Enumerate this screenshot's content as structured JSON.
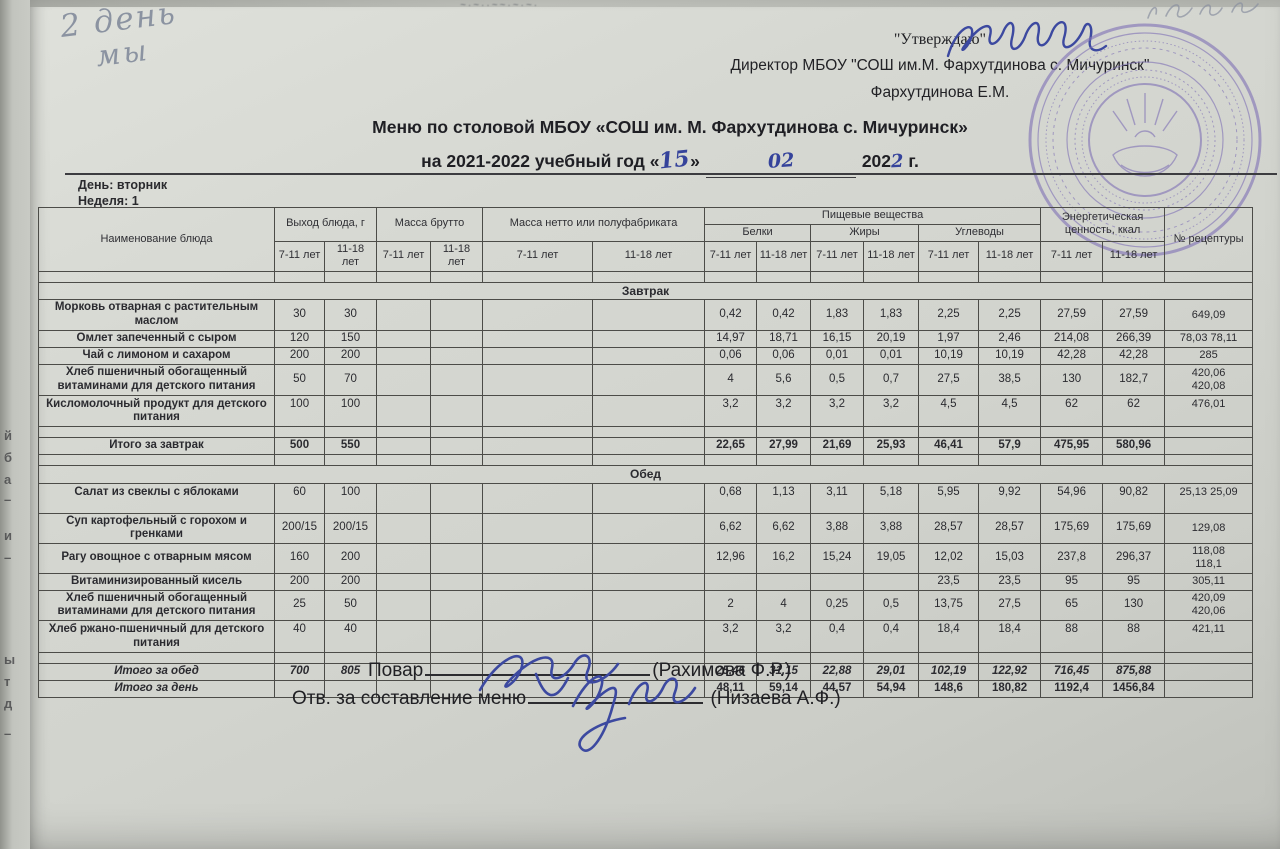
{
  "corner_note": {
    "line1": "2 день",
    "line2": "мы"
  },
  "edge_fragments": [
    "й",
    "б",
    "а",
    "–",
    "и",
    "–",
    "ы",
    "т",
    "д",
    "–"
  ],
  "approval": {
    "quote": "\"Утверждаю\"",
    "director_line": "Директор МБОУ \"СОШ им.М. Фархутдинова с. Мичуринск\"",
    "director_name": "Фархутдинова Е.М."
  },
  "title": {
    "line1": "Меню по столовой МБОУ «СОШ им. М. Фархутдинова с. Мичуринск»",
    "line2_prefix": "на 2021-2022 учебный год «",
    "day_handwritten": "15",
    "quote_close": "»",
    "month_handwritten": "02",
    "year_printed": "202",
    "year_handwritten": "2",
    "year_suffix": "г."
  },
  "meta": {
    "day_label": "День:",
    "day_value": "вторник",
    "week_label": "Неделя:",
    "week_value": "1"
  },
  "colors": {
    "ink_blue": "#3c49a0",
    "stamp_purple": "#8173b6",
    "pencil_gray": "#7d8698"
  },
  "table": {
    "headers": {
      "name": "Наименование блюда",
      "output": "Выход блюда, г",
      "gross": "Масса брутто",
      "net": "Масса нетто или полуфабриката",
      "nutrients": "Пищевые вещества",
      "protein": "Белки",
      "fat": "Жиры",
      "carbs": "Углеводы",
      "energy": "Энергетическая ценность, ккал",
      "recipe": "№ рецептуры",
      "age7": "7-11 лет",
      "age11": "11-18 лет"
    },
    "sections": [
      {
        "title": "Завтрак",
        "rows": [
          {
            "name": "Морковь отварная с растительным маслом",
            "values": [
              "30",
              "30",
              "",
              "",
              "",
              "",
              "0,42",
              "0,42",
              "1,83",
              "1,83",
              "2,25",
              "2,25",
              "27,59",
              "27,59",
              "649,09"
            ]
          },
          {
            "name": "Омлет запеченный с сыром",
            "values": [
              "120",
              "150",
              "",
              "",
              "",
              "",
              "14,97",
              "18,71",
              "16,15",
              "20,19",
              "1,97",
              "2,46",
              "214,08",
              "266,39",
              "78,03 78,11"
            ]
          },
          {
            "name": "Чай с лимоном и сахаром",
            "values": [
              "200",
              "200",
              "",
              "",
              "",
              "",
              "0,06",
              "0,06",
              "0,01",
              "0,01",
              "10,19",
              "10,19",
              "42,28",
              "42,28",
              "285"
            ]
          },
          {
            "name": "Хлеб пшеничный обогащенный витаминами для детского питания",
            "values": [
              "50",
              "70",
              "",
              "",
              "",
              "",
              "4",
              "5,6",
              "0,5",
              "0,7",
              "27,5",
              "38,5",
              "130",
              "182,7",
              "420,06\n420,08"
            ]
          },
          {
            "name": "Кисломолочный продукт для детского питания",
            "style": "roomy",
            "values": [
              "100",
              "100",
              "",
              "",
              "",
              "",
              "3,2",
              "3,2",
              "3,2",
              "3,2",
              "4,5",
              "4,5",
              "62",
              "62",
              "476,01"
            ]
          },
          {
            "spacer": true
          },
          {
            "name": "Итого за завтрак",
            "style": "total",
            "values": [
              "500",
              "550",
              "",
              "",
              "",
              "",
              "22,65",
              "27,99",
              "21,69",
              "25,93",
              "46,41",
              "57,9",
              "475,95",
              "580,96",
              ""
            ]
          }
        ]
      },
      {
        "title": "Обед",
        "rows": [
          {
            "name": "Салат из свеклы с яблоками",
            "style": "roomy",
            "values": [
              "60",
              "100",
              "",
              "",
              "",
              "",
              "0,68",
              "1,13",
              "3,11",
              "5,18",
              "5,95",
              "9,92",
              "54,96",
              "90,82",
              "25,13 25,09"
            ]
          },
          {
            "name": "Суп картофельный с горохом и гренками",
            "values": [
              "200/15",
              "200/15",
              "",
              "",
              "",
              "",
              "6,62",
              "6,62",
              "3,88",
              "3,88",
              "28,57",
              "28,57",
              "175,69",
              "175,69",
              "129,08"
            ]
          },
          {
            "name": "Рагу овощное с отварным мясом",
            "values": [
              "160",
              "200",
              "",
              "",
              "",
              "",
              "12,96",
              "16,2",
              "15,24",
              "19,05",
              "12,02",
              "15,03",
              "237,8",
              "296,37",
              "118,08\n118,1"
            ]
          },
          {
            "name": "Витаминизированный кисель",
            "values": [
              "200",
              "200",
              "",
              "",
              "",
              "",
              "",
              "",
              "",
              "",
              "23,5",
              "23,5",
              "95",
              "95",
              "305,11"
            ]
          },
          {
            "name": "Хлеб пшеничный обогащенный витаминами для детского питания",
            "values": [
              "25",
              "50",
              "",
              "",
              "",
              "",
              "2",
              "4",
              "0,25",
              "0,5",
              "13,75",
              "27,5",
              "65",
              "130",
              "420,09\n420,06"
            ]
          },
          {
            "name": "Хлеб ржано-пшеничный для детского питания",
            "style": "roomy",
            "values": [
              "40",
              "40",
              "",
              "",
              "",
              "",
              "3,2",
              "3,2",
              "0,4",
              "0,4",
              "18,4",
              "18,4",
              "88",
              "88",
              "421,11"
            ]
          },
          {
            "spacer": true
          },
          {
            "name": "Итого за обед",
            "style": "total-italic",
            "values": [
              "700",
              "805",
              "",
              "",
              "",
              "",
              "25,46",
              "31,15",
              "22,88",
              "29,01",
              "102,19",
              "122,92",
              "716,45",
              "875,88",
              ""
            ]
          },
          {
            "name": "Итого за день",
            "style": "total-name-italic",
            "values": [
              "",
              "",
              "",
              "",
              "",
              "",
              "48,11",
              "59,14",
              "44,57",
              "54,94",
              "148,6",
              "180,82",
              "1192,4",
              "1456,84",
              ""
            ]
          }
        ]
      }
    ]
  },
  "footer": {
    "cook_label": "Повар",
    "cook_name": "(Рахимова Ф.Р.)",
    "responsible_label": "Отв. за составление меню",
    "responsible_name": "(Низаева А.Ф.)"
  }
}
